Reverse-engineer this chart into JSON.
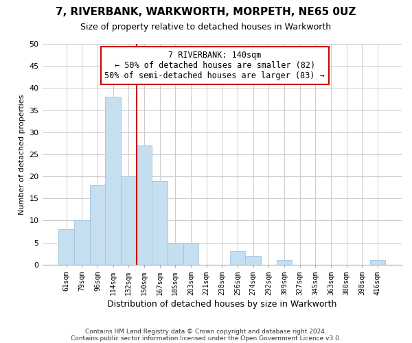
{
  "title": "7, RIVERBANK, WARKWORTH, MORPETH, NE65 0UZ",
  "subtitle": "Size of property relative to detached houses in Warkworth",
  "xlabel": "Distribution of detached houses by size in Warkworth",
  "ylabel": "Number of detached properties",
  "bar_labels": [
    "61sqm",
    "79sqm",
    "96sqm",
    "114sqm",
    "132sqm",
    "150sqm",
    "167sqm",
    "185sqm",
    "203sqm",
    "221sqm",
    "238sqm",
    "256sqm",
    "274sqm",
    "292sqm",
    "309sqm",
    "327sqm",
    "345sqm",
    "363sqm",
    "380sqm",
    "398sqm",
    "416sqm"
  ],
  "bar_values": [
    8,
    10,
    18,
    38,
    20,
    27,
    19,
    5,
    5,
    0,
    0,
    3,
    2,
    0,
    1,
    0,
    0,
    0,
    0,
    0,
    1
  ],
  "bar_color": "#c6dff0",
  "bar_edge_color": "#a0c4e0",
  "vline_x_index": 4.5,
  "vline_color": "#cc0000",
  "ylim": [
    0,
    50
  ],
  "yticks": [
    0,
    5,
    10,
    15,
    20,
    25,
    30,
    35,
    40,
    45,
    50
  ],
  "annotation_title": "7 RIVERBANK: 140sqm",
  "annotation_line1": "← 50% of detached houses are smaller (82)",
  "annotation_line2": "50% of semi-detached houses are larger (83) →",
  "footer_line1": "Contains HM Land Registry data © Crown copyright and database right 2024.",
  "footer_line2": "Contains public sector information licensed under the Open Government Licence v3.0.",
  "grid_color": "#cccccc",
  "background_color": "#ffffff"
}
